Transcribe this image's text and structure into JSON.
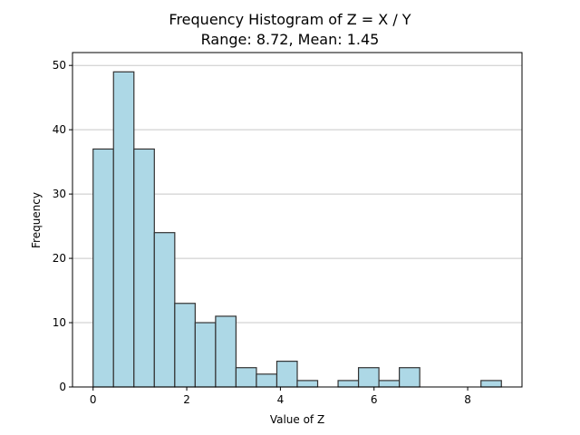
{
  "chart_data": {
    "type": "bar",
    "title": "Frequency Histogram of Z = X / Y",
    "subtitle": "Range: 8.72, Mean: 1.45",
    "xlabel": "Value of Z",
    "ylabel": "Frequency",
    "xlim": [
      -0.44,
      9.16
    ],
    "ylim": [
      0,
      52
    ],
    "xticks": [
      0,
      2,
      4,
      6,
      8
    ],
    "yticks": [
      0,
      10,
      20,
      30,
      40,
      50
    ],
    "grid": "y",
    "bin_width": 0.436,
    "bins": [
      {
        "x0": 0.0,
        "count": 37
      },
      {
        "x0": 0.436,
        "count": 49
      },
      {
        "x0": 0.872,
        "count": 37
      },
      {
        "x0": 1.308,
        "count": 24
      },
      {
        "x0": 1.744,
        "count": 13
      },
      {
        "x0": 2.18,
        "count": 10
      },
      {
        "x0": 2.616,
        "count": 11
      },
      {
        "x0": 3.052,
        "count": 3
      },
      {
        "x0": 3.488,
        "count": 2
      },
      {
        "x0": 3.924,
        "count": 4
      },
      {
        "x0": 4.36,
        "count": 1
      },
      {
        "x0": 4.796,
        "count": 0
      },
      {
        "x0": 5.232,
        "count": 1
      },
      {
        "x0": 5.668,
        "count": 3
      },
      {
        "x0": 6.104,
        "count": 1
      },
      {
        "x0": 6.54,
        "count": 3
      },
      {
        "x0": 6.976,
        "count": 0
      },
      {
        "x0": 7.412,
        "count": 0
      },
      {
        "x0": 7.848,
        "count": 0
      },
      {
        "x0": 8.284,
        "count": 1
      }
    ],
    "colors": {
      "bar_fill": "#add8e6",
      "bar_edge": "#333333",
      "grid": "#c8c8c8"
    }
  }
}
